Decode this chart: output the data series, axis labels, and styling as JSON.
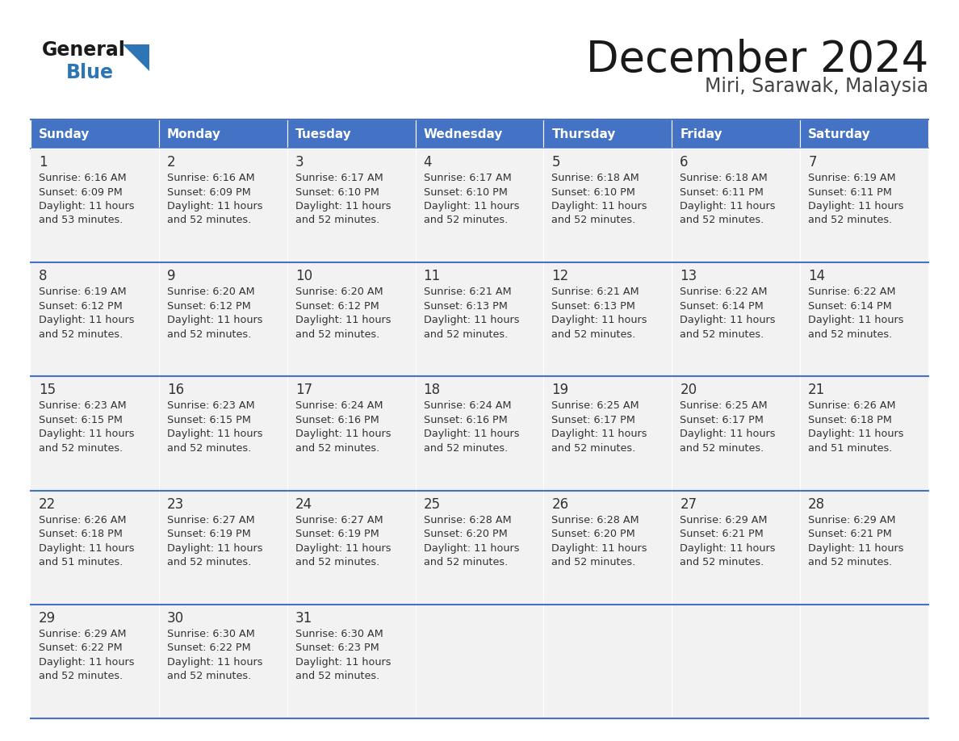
{
  "title": "December 2024",
  "subtitle": "Miri, Sarawak, Malaysia",
  "days_of_week": [
    "Sunday",
    "Monday",
    "Tuesday",
    "Wednesday",
    "Thursday",
    "Friday",
    "Saturday"
  ],
  "header_bg": "#4472C4",
  "header_text": "#FFFFFF",
  "row_bg": "#F2F2F2",
  "border_color": "#4472C4",
  "day_number_color": "#333333",
  "cell_text_color": "#333333",
  "title_color": "#1a1a1a",
  "subtitle_color": "#444444",
  "logo_general_color": "#1a1a1a",
  "logo_blue_color": "#2E75B6",
  "weeks": [
    [
      {
        "day": 1,
        "sunrise": "6:16 AM",
        "sunset": "6:09 PM",
        "daylight": "11 hours and 53 minutes."
      },
      {
        "day": 2,
        "sunrise": "6:16 AM",
        "sunset": "6:09 PM",
        "daylight": "11 hours and 52 minutes."
      },
      {
        "day": 3,
        "sunrise": "6:17 AM",
        "sunset": "6:10 PM",
        "daylight": "11 hours and 52 minutes."
      },
      {
        "day": 4,
        "sunrise": "6:17 AM",
        "sunset": "6:10 PM",
        "daylight": "11 hours and 52 minutes."
      },
      {
        "day": 5,
        "sunrise": "6:18 AM",
        "sunset": "6:10 PM",
        "daylight": "11 hours and 52 minutes."
      },
      {
        "day": 6,
        "sunrise": "6:18 AM",
        "sunset": "6:11 PM",
        "daylight": "11 hours and 52 minutes."
      },
      {
        "day": 7,
        "sunrise": "6:19 AM",
        "sunset": "6:11 PM",
        "daylight": "11 hours and 52 minutes."
      }
    ],
    [
      {
        "day": 8,
        "sunrise": "6:19 AM",
        "sunset": "6:12 PM",
        "daylight": "11 hours and 52 minutes."
      },
      {
        "day": 9,
        "sunrise": "6:20 AM",
        "sunset": "6:12 PM",
        "daylight": "11 hours and 52 minutes."
      },
      {
        "day": 10,
        "sunrise": "6:20 AM",
        "sunset": "6:12 PM",
        "daylight": "11 hours and 52 minutes."
      },
      {
        "day": 11,
        "sunrise": "6:21 AM",
        "sunset": "6:13 PM",
        "daylight": "11 hours and 52 minutes."
      },
      {
        "day": 12,
        "sunrise": "6:21 AM",
        "sunset": "6:13 PM",
        "daylight": "11 hours and 52 minutes."
      },
      {
        "day": 13,
        "sunrise": "6:22 AM",
        "sunset": "6:14 PM",
        "daylight": "11 hours and 52 minutes."
      },
      {
        "day": 14,
        "sunrise": "6:22 AM",
        "sunset": "6:14 PM",
        "daylight": "11 hours and 52 minutes."
      }
    ],
    [
      {
        "day": 15,
        "sunrise": "6:23 AM",
        "sunset": "6:15 PM",
        "daylight": "11 hours and 52 minutes."
      },
      {
        "day": 16,
        "sunrise": "6:23 AM",
        "sunset": "6:15 PM",
        "daylight": "11 hours and 52 minutes."
      },
      {
        "day": 17,
        "sunrise": "6:24 AM",
        "sunset": "6:16 PM",
        "daylight": "11 hours and 52 minutes."
      },
      {
        "day": 18,
        "sunrise": "6:24 AM",
        "sunset": "6:16 PM",
        "daylight": "11 hours and 52 minutes."
      },
      {
        "day": 19,
        "sunrise": "6:25 AM",
        "sunset": "6:17 PM",
        "daylight": "11 hours and 52 minutes."
      },
      {
        "day": 20,
        "sunrise": "6:25 AM",
        "sunset": "6:17 PM",
        "daylight": "11 hours and 52 minutes."
      },
      {
        "day": 21,
        "sunrise": "6:26 AM",
        "sunset": "6:18 PM",
        "daylight": "11 hours and 51 minutes."
      }
    ],
    [
      {
        "day": 22,
        "sunrise": "6:26 AM",
        "sunset": "6:18 PM",
        "daylight": "11 hours and 51 minutes."
      },
      {
        "day": 23,
        "sunrise": "6:27 AM",
        "sunset": "6:19 PM",
        "daylight": "11 hours and 52 minutes."
      },
      {
        "day": 24,
        "sunrise": "6:27 AM",
        "sunset": "6:19 PM",
        "daylight": "11 hours and 52 minutes."
      },
      {
        "day": 25,
        "sunrise": "6:28 AM",
        "sunset": "6:20 PM",
        "daylight": "11 hours and 52 minutes."
      },
      {
        "day": 26,
        "sunrise": "6:28 AM",
        "sunset": "6:20 PM",
        "daylight": "11 hours and 52 minutes."
      },
      {
        "day": 27,
        "sunrise": "6:29 AM",
        "sunset": "6:21 PM",
        "daylight": "11 hours and 52 minutes."
      },
      {
        "day": 28,
        "sunrise": "6:29 AM",
        "sunset": "6:21 PM",
        "daylight": "11 hours and 52 minutes."
      }
    ],
    [
      {
        "day": 29,
        "sunrise": "6:29 AM",
        "sunset": "6:22 PM",
        "daylight": "11 hours and 52 minutes."
      },
      {
        "day": 30,
        "sunrise": "6:30 AM",
        "sunset": "6:22 PM",
        "daylight": "11 hours and 52 minutes."
      },
      {
        "day": 31,
        "sunrise": "6:30 AM",
        "sunset": "6:23 PM",
        "daylight": "11 hours and 52 minutes."
      },
      null,
      null,
      null,
      null
    ]
  ]
}
